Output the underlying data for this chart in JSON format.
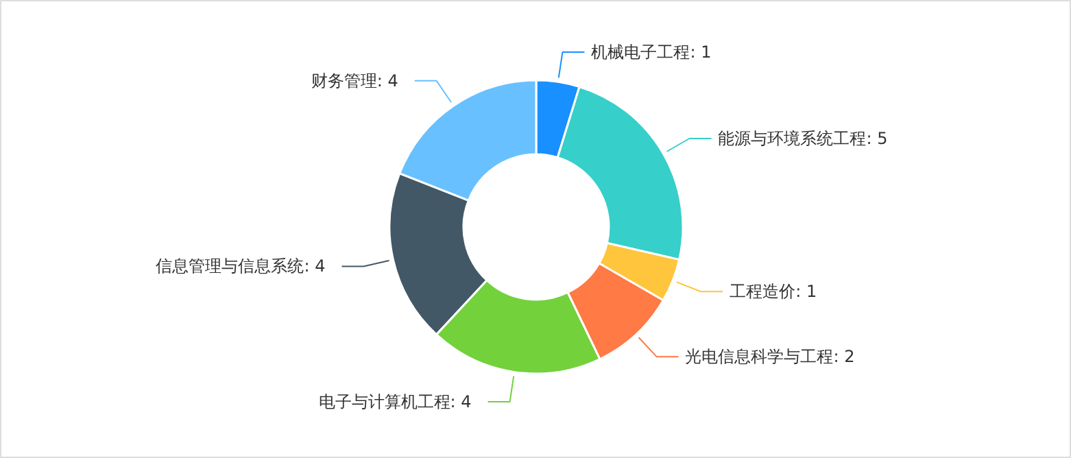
{
  "chart_data": {
    "type": "donut",
    "categories": [
      "机械电子工程",
      "能源与环境系统工程",
      "工程造价",
      "光电信息科学与工程",
      "电子与计算机工程",
      "信息管理与信息系统",
      "财务管理"
    ],
    "values": [
      1,
      5,
      1,
      2,
      4,
      4,
      4
    ],
    "colors": [
      "#1890ff",
      "#36cfca",
      "#ffc53d",
      "#ff7a45",
      "#73d13c",
      "#435866",
      "#69c0ff"
    ],
    "value_labels": [
      ": 1",
      ": 5",
      ": 1",
      ": 2",
      ": 4",
      ": 4",
      ": 4"
    ]
  }
}
